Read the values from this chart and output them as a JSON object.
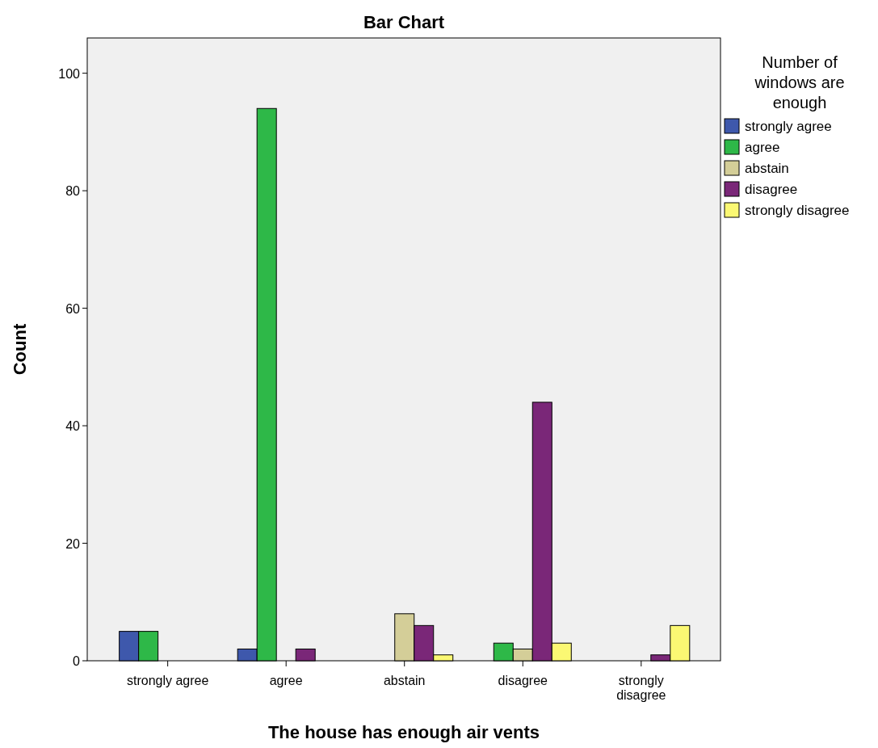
{
  "chart_data": {
    "type": "bar",
    "title": "Bar Chart",
    "xlabel": "The house has enough air vents",
    "ylabel": "Count",
    "legend_title": "Number of windows are enough",
    "categories": [
      "strongly agree",
      "agree",
      "abstain",
      "disagree",
      "strongly disagree"
    ],
    "series": [
      {
        "name": "strongly agree",
        "color": "#3e58ac",
        "values": [
          5,
          2,
          null,
          null,
          null
        ]
      },
      {
        "name": "agree",
        "color": "#2eb848",
        "values": [
          5,
          94,
          null,
          3,
          null
        ]
      },
      {
        "name": "abstain",
        "color": "#d4ce98",
        "values": [
          null,
          null,
          8,
          2,
          null
        ]
      },
      {
        "name": "disagree",
        "color": "#7a2778",
        "values": [
          null,
          2,
          6,
          44,
          1
        ]
      },
      {
        "name": "strongly disagree",
        "color": "#fbf873",
        "values": [
          null,
          null,
          1,
          3,
          6
        ]
      }
    ],
    "ylim": [
      0,
      106
    ],
    "yticks": [
      0,
      20,
      40,
      60,
      80,
      100
    ],
    "legend": "top right"
  }
}
